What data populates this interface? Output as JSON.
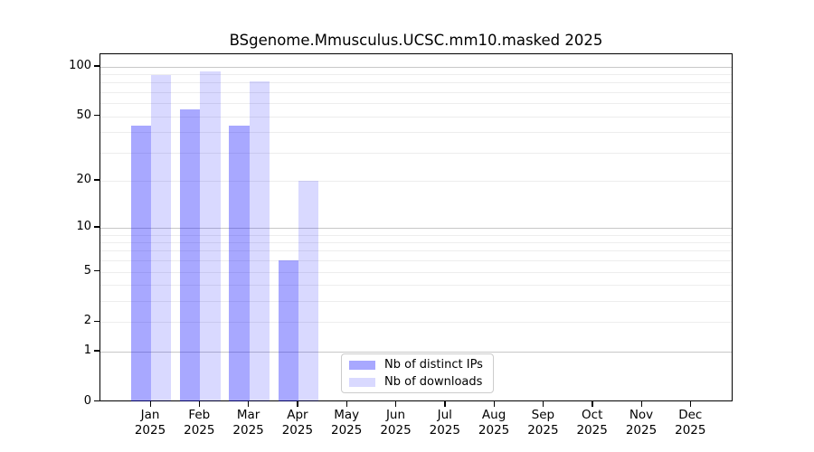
{
  "chart_data": {
    "type": "bar",
    "title": "BSgenome.Mmusculus.UCSC.mm10.masked 2025",
    "categories": [
      "Jan",
      "Feb",
      "Mar",
      "Apr",
      "May",
      "Jun",
      "Jul",
      "Aug",
      "Sep",
      "Oct",
      "Nov",
      "Dec"
    ],
    "category_year": "2025",
    "series": [
      {
        "name": "Nb of distinct IPs",
        "color": "rgba(0,0,255,0.34)",
        "values": [
          44,
          55,
          44,
          6,
          0,
          0,
          0,
          0,
          0,
          0,
          0,
          0
        ]
      },
      {
        "name": "Nb of downloads",
        "color": "rgba(0,0,255,0.15)",
        "values": [
          89,
          94,
          81,
          20,
          0,
          0,
          0,
          0,
          0,
          0,
          0,
          0
        ]
      }
    ],
    "y_scale": "log10(1+x)",
    "y_ticks": [
      0,
      1,
      2,
      5,
      10,
      20,
      50,
      100
    ],
    "y_minor_gridlines": [
      2,
      3,
      4,
      5,
      6,
      7,
      8,
      9,
      20,
      30,
      40,
      50,
      60,
      70,
      80,
      90
    ],
    "y_major_gridlines": [
      1,
      10,
      100
    ],
    "ylim": [
      0,
      115
    ],
    "grid": "on",
    "legend_position": "inside lower center"
  }
}
